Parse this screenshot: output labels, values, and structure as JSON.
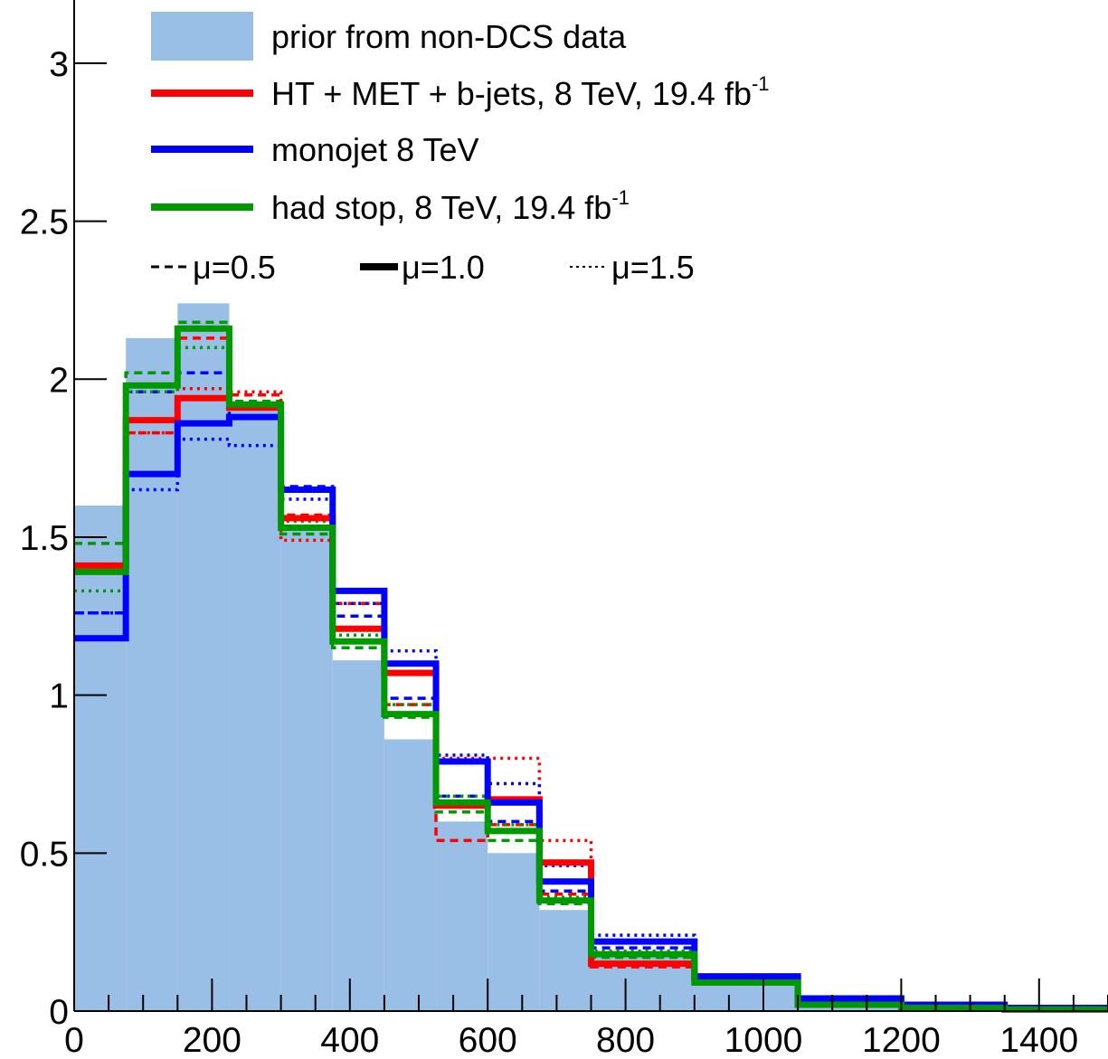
{
  "chart_data": {
    "type": "histogram",
    "title": "",
    "xlabel": "",
    "ylabel": "",
    "xlim": [
      0,
      1500
    ],
    "ylim": [
      0,
      3.2
    ],
    "grid": false,
    "legend_placement": "top-left",
    "x_ticks": [
      "0",
      "200",
      "400",
      "600",
      "800",
      "1000",
      "1200",
      "1400"
    ],
    "y_ticks": [
      "0",
      "0.5",
      "1",
      "1.5",
      "2",
      "2.5",
      "3"
    ],
    "bin_edges": [
      0,
      75,
      150,
      225,
      300,
      375,
      450,
      525,
      600,
      675,
      750,
      900,
      1050,
      1200,
      1350,
      1500
    ],
    "prior": {
      "name": "prior from non-DCS data",
      "color": "#99bfe6",
      "values": [
        1.6,
        2.13,
        2.24,
        1.92,
        1.54,
        1.11,
        0.86,
        0.6,
        0.5,
        0.32,
        0.17,
        0.08,
        0.02,
        0.01,
        0.005
      ]
    },
    "series": [
      {
        "name": "HT + MET + b-jets, 8 TeV, 19.4 fb",
        "sup": "-1",
        "color": "#ff0000",
        "mu": "1.0",
        "style": "solid",
        "values": [
          1.41,
          1.87,
          1.94,
          1.91,
          1.56,
          1.21,
          1.07,
          0.65,
          0.67,
          0.47,
          0.15,
          0.1,
          0.02,
          0.01,
          0.005
        ]
      },
      {
        "name": "HT + MET + b-jets, 8 TeV, 19.4 fb",
        "color": "#ff0000",
        "mu": "0.5",
        "style": "dashed",
        "values": [
          1.26,
          1.83,
          2.13,
          1.95,
          1.57,
          1.29,
          0.97,
          0.54,
          0.59,
          0.37,
          0.14,
          0.09,
          0.02,
          0.01,
          0.005
        ]
      },
      {
        "name": "HT + MET + b-jets, 8 TeV, 19.4 fb",
        "color": "#ff0000",
        "mu": "1.5",
        "style": "dotted",
        "values": [
          1.26,
          1.83,
          1.97,
          1.96,
          1.49,
          1.29,
          1.07,
          0.8,
          0.8,
          0.54,
          0.18,
          0.1,
          0.02,
          0.01,
          0.005
        ]
      },
      {
        "name": "monojet 8 TeV",
        "color": "#0000ff",
        "mu": "1.0",
        "style": "solid",
        "values": [
          1.18,
          1.7,
          1.86,
          1.88,
          1.65,
          1.33,
          1.1,
          0.79,
          0.66,
          0.41,
          0.22,
          0.11,
          0.04,
          0.02,
          0.01
        ]
      },
      {
        "name": "monojet 8 TeV",
        "color": "#0000ff",
        "mu": "0.5",
        "style": "dashed",
        "values": [
          1.26,
          1.96,
          2.02,
          1.88,
          1.66,
          1.25,
          0.99,
          0.68,
          0.6,
          0.38,
          0.2,
          0.1,
          0.04,
          0.02,
          0.01
        ]
      },
      {
        "name": "monojet 8 TeV",
        "color": "#0000ff",
        "mu": "1.5",
        "style": "dotted",
        "values": [
          1.26,
          1.65,
          1.81,
          1.79,
          1.62,
          1.29,
          1.14,
          0.81,
          0.72,
          0.46,
          0.24,
          0.11,
          0.04,
          0.02,
          0.01
        ]
      },
      {
        "name": "had stop, 8 TeV, 19.4 fb",
        "sup": "-1",
        "color": "#009900",
        "mu": "1.0",
        "style": "solid",
        "values": [
          1.39,
          1.98,
          2.16,
          1.92,
          1.53,
          1.17,
          0.94,
          0.66,
          0.57,
          0.35,
          0.18,
          0.09,
          0.02,
          0.01,
          0.005
        ]
      },
      {
        "name": "had stop, 8 TeV, 19.4 fb",
        "color": "#009900",
        "mu": "0.5",
        "style": "dashed",
        "values": [
          1.48,
          2.02,
          2.18,
          1.93,
          1.51,
          1.15,
          0.93,
          0.63,
          0.54,
          0.34,
          0.17,
          0.09,
          0.02,
          0.01,
          0.005
        ]
      },
      {
        "name": "had stop, 8 TeV, 19.4 fb",
        "color": "#009900",
        "mu": "1.5",
        "style": "dotted",
        "values": [
          1.33,
          1.96,
          2.1,
          1.92,
          1.55,
          1.19,
          0.97,
          0.68,
          0.59,
          0.36,
          0.19,
          0.09,
          0.02,
          0.01,
          0.005
        ]
      }
    ],
    "legend": {
      "entries": [
        {
          "label": "prior from non-DCS data",
          "kind": "fill",
          "color": "#99bfe6"
        },
        {
          "label": "HT + MET + b-jets, 8 TeV, 19.4 fb",
          "sup": "-1",
          "kind": "line",
          "color": "#ff0000"
        },
        {
          "label": "monojet 8 TeV",
          "kind": "line",
          "color": "#0000ff"
        },
        {
          "label": "had stop, 8 TeV, 19.4 fb",
          "sup": "-1",
          "kind": "line",
          "color": "#009900"
        }
      ],
      "mu_entries": [
        {
          "label": "μ=0.5",
          "style": "dashed"
        },
        {
          "label": "μ=1.0",
          "style": "solid"
        },
        {
          "label": "μ=1.5",
          "style": "dotted"
        }
      ]
    }
  }
}
